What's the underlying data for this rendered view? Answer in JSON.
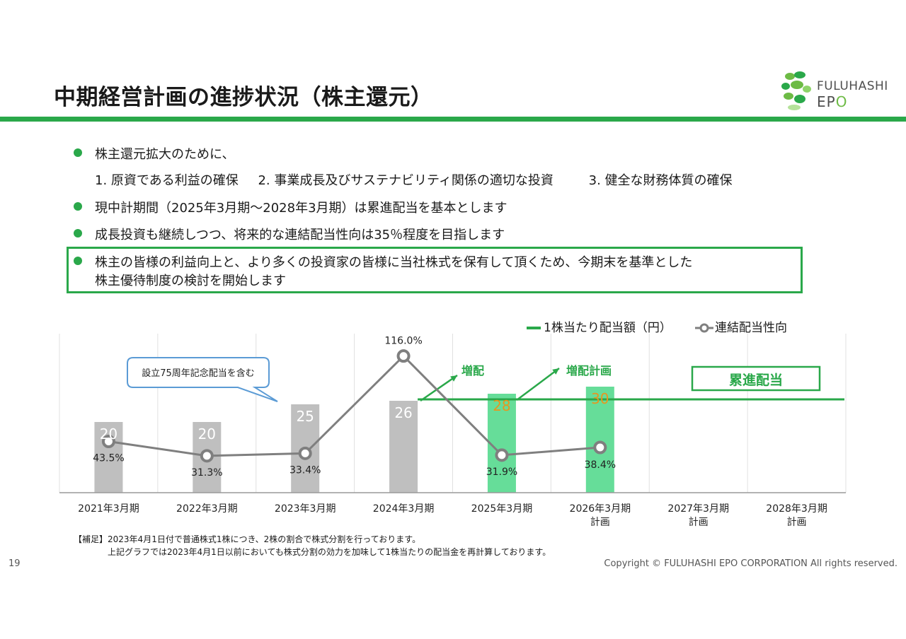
{
  "slide": {
    "title": "中期経営計画の進捗状況（株主還元）",
    "page_number": "19",
    "copyright": "Copyright © FULUHASHI EPO CORPORATION All rights reserved."
  },
  "logo": {
    "line1": "FULUHASHI",
    "line2_prefix": "EP",
    "line2_accent": "O"
  },
  "bullets": {
    "b1": "株主還元拡大のために、",
    "b1_items": [
      "1. 原資である利益の確保",
      "2. 事業成長及びサステナビリティ関係の適切な投資",
      "3. 健全な財務体質の確保"
    ],
    "b2": "現中計期間（2025年3月期～2028年3月期）は累進配当を基本とします",
    "b3": "成長投資も継続しつつ、将来的な連結配当性向は35％程度を目指します",
    "b4_line1": "株主の皆様の利益向上と、より多くの投資家の皆様に当社株式を保有して頂くため、今期末を基準とした",
    "b4_line2": "株主優待制度の検討を開始します"
  },
  "colors": {
    "green": "#2aa84a",
    "bar_gray": "#bfbfbf",
    "bar_green": "#66dd99",
    "line_gray": "#7f7f7f",
    "orange": "#e8961e",
    "callout_blue": "#5b9bd5"
  },
  "chart_data": {
    "type": "bar",
    "categories": [
      "2021年3月期",
      "2022年3月期",
      "2023年3月期",
      "2024年3月期",
      "2025年3月期",
      "2026年3月期",
      "2027年3月期",
      "2028年3月期"
    ],
    "category_sublabels": [
      "",
      "",
      "",
      "",
      "",
      "計画",
      "計画",
      "計画"
    ],
    "series": [
      {
        "name": "1株当たり配当額（円）",
        "type": "bar",
        "values": [
          20,
          20,
          25,
          26,
          28,
          30,
          null,
          null
        ],
        "labels": [
          "20",
          "20",
          "25",
          "26",
          "28",
          "30",
          "",
          ""
        ]
      },
      {
        "name": "連結配当性向",
        "type": "line",
        "values": [
          43.5,
          31.3,
          33.4,
          116.0,
          31.9,
          38.4,
          null,
          null
        ],
        "labels": [
          "43.5%",
          "31.3%",
          "33.4%",
          "116.0%",
          "31.9%",
          "38.4%",
          "",
          ""
        ]
      }
    ],
    "annotations": {
      "callout": "設立75周年記念配当を含む",
      "increase": "増配",
      "increase_plan": "増配計画",
      "progressive": "累進配当"
    },
    "ylim_bar": [
      0,
      45
    ],
    "ylim_line": [
      0,
      135
    ],
    "legend_position": "top-right",
    "grid": "vertical"
  },
  "footnote": {
    "label": "【補足】",
    "line1": "2023年4月1日付で普通株式1株につき、2株の割合で株式分割を行っております。",
    "line2": "上記グラフでは2023年4月1日以前においても株式分割の効力を加味して1株当たりの配当金を再計算しております。"
  }
}
